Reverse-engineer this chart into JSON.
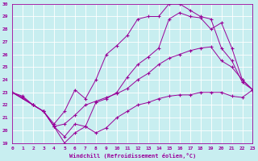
{
  "bg_color": "#c8eef0",
  "line_color": "#990099",
  "grid_color": "#ffffff",
  "xlabel": "Windchill (Refroidissement éolien,°C)",
  "ylim": [
    19,
    30
  ],
  "xlim": [
    0,
    23
  ],
  "yticks": [
    19,
    20,
    21,
    22,
    23,
    24,
    25,
    26,
    27,
    28,
    29,
    30
  ],
  "xticks": [
    0,
    1,
    2,
    3,
    4,
    5,
    6,
    7,
    8,
    9,
    10,
    11,
    12,
    13,
    14,
    15,
    16,
    17,
    18,
    19,
    20,
    21,
    22,
    23
  ],
  "line1_x": [
    0,
    1,
    2,
    3,
    4,
    5,
    6,
    7,
    8,
    9,
    10,
    11,
    12,
    13,
    14,
    15,
    16,
    17,
    18,
    19,
    20,
    21,
    22,
    23
  ],
  "line1_y": [
    23.0,
    22.7,
    22.0,
    21.5,
    20.3,
    19.0,
    19.8,
    20.3,
    19.8,
    20.2,
    21.0,
    21.5,
    22.0,
    22.2,
    22.5,
    22.7,
    22.8,
    22.8,
    23.0,
    23.0,
    23.0,
    22.7,
    22.6,
    23.2
  ],
  "line2_x": [
    0,
    1,
    2,
    3,
    4,
    5,
    6,
    7,
    8,
    9,
    10,
    11,
    12,
    13,
    14,
    15,
    16,
    17,
    18,
    19,
    20,
    21,
    22,
    23
  ],
  "line2_y": [
    23.0,
    22.6,
    22.0,
    21.5,
    20.3,
    20.5,
    21.2,
    22.0,
    22.3,
    22.6,
    22.9,
    23.3,
    24.0,
    24.5,
    25.2,
    25.7,
    26.0,
    26.3,
    26.5,
    26.6,
    25.5,
    25.0,
    24.0,
    23.2
  ],
  "line3_x": [
    0,
    2,
    3,
    4,
    5,
    6,
    7,
    8,
    9,
    10,
    11,
    12,
    13,
    14,
    15,
    16,
    17,
    18,
    19,
    20,
    21,
    22,
    23
  ],
  "line3_y": [
    23.0,
    22.0,
    21.5,
    20.5,
    21.5,
    23.2,
    22.5,
    24.0,
    26.0,
    26.7,
    27.5,
    28.8,
    29.0,
    29.0,
    30.0,
    30.0,
    29.5,
    29.0,
    28.8,
    26.5,
    25.5,
    23.8,
    23.2
  ],
  "line4_x": [
    0,
    2,
    3,
    4,
    5,
    6,
    7,
    8,
    9,
    10,
    11,
    12,
    13,
    14,
    15,
    16,
    17,
    18,
    19,
    20,
    21,
    22,
    23
  ],
  "line4_y": [
    23.0,
    22.0,
    21.5,
    20.3,
    19.5,
    20.5,
    20.3,
    22.2,
    22.5,
    23.0,
    24.2,
    25.2,
    25.8,
    26.5,
    28.8,
    29.3,
    29.0,
    28.9,
    28.0,
    28.5,
    26.5,
    24.0,
    23.2
  ]
}
